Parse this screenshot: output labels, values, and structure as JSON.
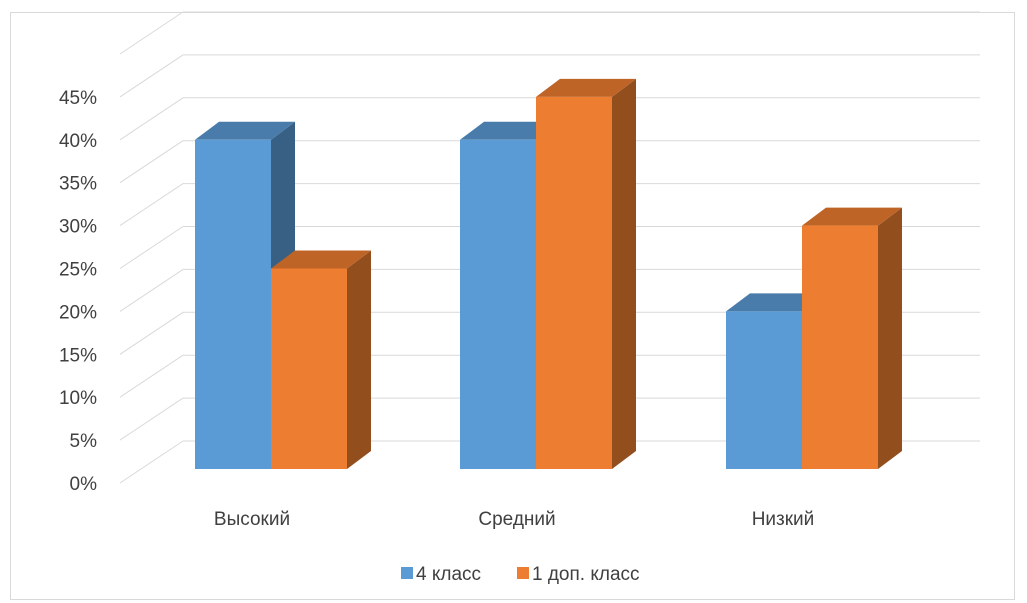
{
  "chart_data": {
    "type": "bar",
    "categories": [
      "Высокий",
      "Средний",
      "Низкий"
    ],
    "series": [
      {
        "name": "4 класс",
        "values": [
          40,
          40,
          20
        ],
        "color": "#5B9BD5"
      },
      {
        "name": "1 доп. класс",
        "values": [
          25,
          45,
          30
        ],
        "color": "#ED7D31"
      }
    ],
    "y_tick_labels": [
      "0%",
      "5%",
      "10%",
      "15%",
      "20%",
      "25%",
      "30%",
      "35%",
      "40%",
      "45%"
    ],
    "ylim": [
      0,
      50
    ],
    "y_unit": "%",
    "grid": true,
    "legend_position": "bottom",
    "style": "3d-clustered-column"
  }
}
